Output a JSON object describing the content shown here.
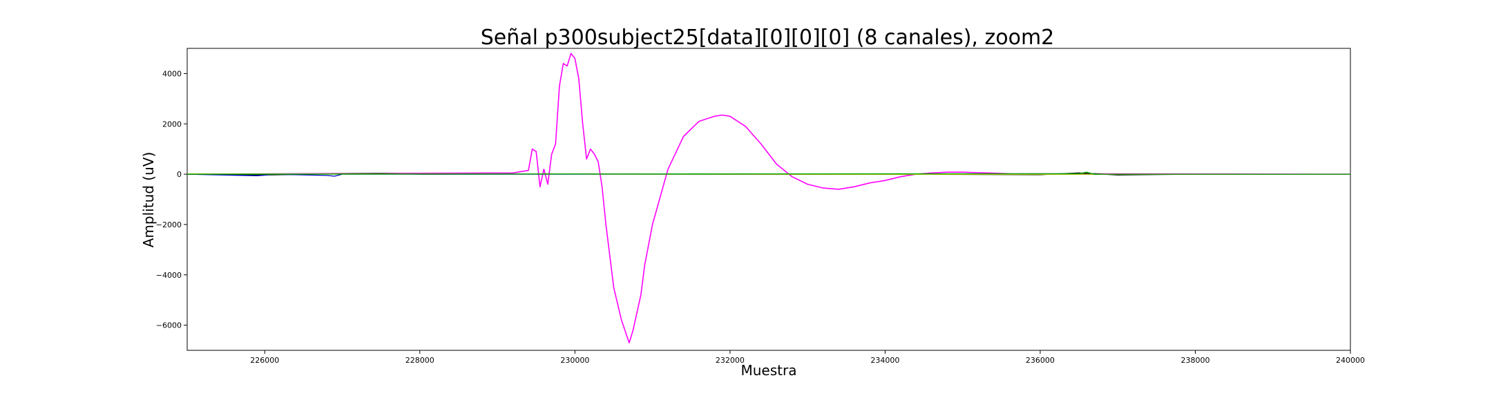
{
  "chart_data": {
    "type": "line",
    "title": "Señal p300subject25[data][0][0][0] (8 canales), zoom2",
    "xlabel": "Muestra",
    "ylabel": "Amplitud (uV)",
    "xlim": [
      225000,
      240000
    ],
    "ylim": [
      -7000,
      5000
    ],
    "x_ticks": [
      226000,
      228000,
      230000,
      232000,
      234000,
      236000,
      238000,
      240000
    ],
    "x_tick_labels": [
      "226000",
      "228000",
      "230000",
      "232000",
      "234000",
      "236000",
      "238000",
      "240000"
    ],
    "y_ticks": [
      4000,
      2000,
      0,
      -2000,
      -4000,
      -6000
    ],
    "y_tick_labels": [
      "4000",
      "2000",
      "0",
      "−2000",
      "−4000",
      "−6000"
    ],
    "grid": false,
    "series": [
      {
        "color": "#ff00ff",
        "x": [
          225000,
          229200,
          229300,
          229400,
          229450,
          229500,
          229550,
          229600,
          229650,
          229700,
          229750,
          229800,
          229850,
          229900,
          229950,
          230000,
          230050,
          230100,
          230150,
          230200,
          230250,
          230300,
          230350,
          230400,
          230500,
          230600,
          230700,
          230750,
          230800,
          230850,
          230900,
          231000,
          231200,
          231400,
          231600,
          231800,
          231900,
          232000,
          232200,
          232400,
          232600,
          232800,
          233000,
          233200,
          233400,
          233600,
          233800,
          234000,
          234200,
          234400,
          234600,
          234800,
          235000,
          235200,
          235400,
          235600,
          240000
        ],
        "values": [
          0,
          50,
          100,
          150,
          1000,
          900,
          -500,
          200,
          -400,
          800,
          1200,
          3500,
          4400,
          4300,
          4800,
          4600,
          3800,
          2000,
          600,
          1000,
          800,
          500,
          -500,
          -2000,
          -4500,
          -5800,
          -6700,
          -6200,
          -5500,
          -4800,
          -3600,
          -2000,
          200,
          1500,
          2100,
          2300,
          2350,
          2300,
          1900,
          1200,
          400,
          -100,
          -400,
          -550,
          -600,
          -500,
          -350,
          -250,
          -100,
          0,
          50,
          80,
          80,
          60,
          40,
          20,
          0
        ]
      },
      {
        "color": "#000000",
        "x": [
          225000,
          226000,
          227000,
          227500,
          228000,
          230000,
          232000,
          233000,
          234000,
          236000,
          236500,
          237000,
          238000,
          240000
        ],
        "values": [
          0,
          -30,
          20,
          30,
          0,
          10,
          0,
          0,
          0,
          -20,
          50,
          -30,
          0,
          0
        ]
      },
      {
        "color": "#0000cc",
        "x": [
          225000,
          225900,
          226000,
          226100,
          226800,
          226900,
          227000,
          240000
        ],
        "values": [
          0,
          -60,
          -40,
          0,
          -50,
          -80,
          0,
          0
        ]
      },
      {
        "color": "#bbbb00",
        "x": [
          225000,
          230000,
          235000,
          240000
        ],
        "values": [
          10,
          5,
          -10,
          0
        ]
      },
      {
        "color": "#00aa00",
        "x": [
          225000,
          236500,
          236600,
          236700,
          240000
        ],
        "values": [
          0,
          20,
          80,
          0,
          0
        ]
      }
    ]
  }
}
